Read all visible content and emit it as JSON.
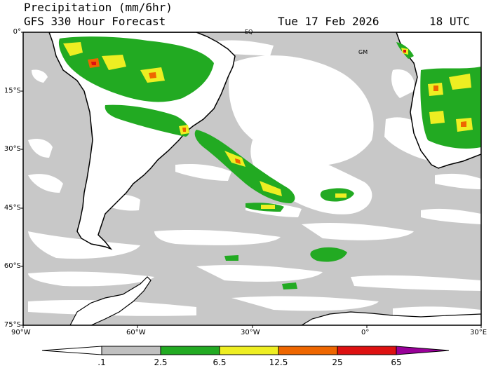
{
  "header": {
    "title": "Precipitation (mm/6hr)",
    "model": "GFS 330 Hour Forecast",
    "date": "Tue 17 Feb 2026",
    "time": "18 UTC"
  },
  "axes": {
    "lat_labels": [
      "0°",
      "15°S",
      "30°S",
      "45°S",
      "60°S",
      "75°S"
    ],
    "lon_labels": [
      "90°W",
      "60°W",
      "30°W",
      "0°",
      "30°E"
    ]
  },
  "map_labels": {
    "eq": "EQ",
    "gm": "GM"
  },
  "colorbar": {
    "levels": [
      ".1",
      "2.5",
      "6.5",
      "12.5",
      "25",
      "65"
    ],
    "colors": [
      "#ffffff",
      "#c0c0c0",
      "#22aa22",
      "#eeee22",
      "#ee6600",
      "#dd1111",
      "#990099"
    ]
  },
  "colors": {
    "land": "#ffffff",
    "light_precip": "#c8c8c8",
    "moderate": "#22aa22",
    "heavy": "#eeee22",
    "very_heavy": "#ee6600",
    "extreme": "#dd1111"
  }
}
